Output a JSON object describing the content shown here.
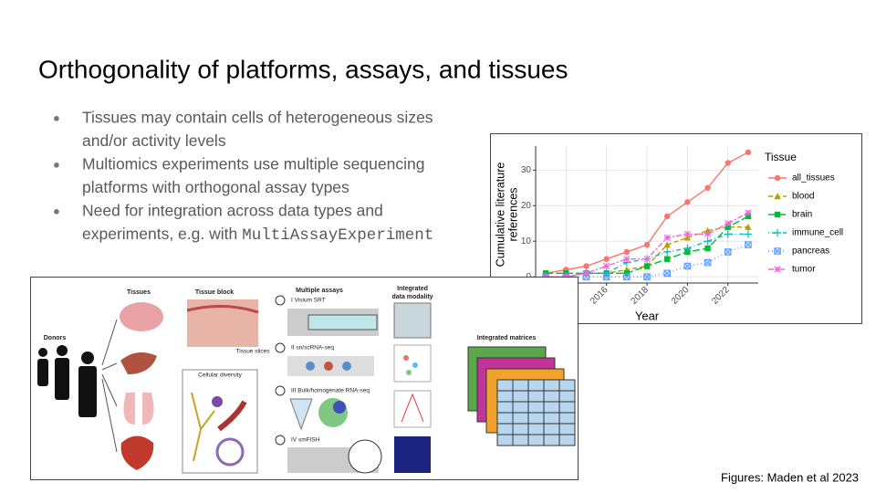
{
  "slide": {
    "title": "Orthogonality of platforms, assays, and tissues",
    "bullets": [
      {
        "lines": [
          "Tissues may contain cells of heterogeneous sizes",
          "and/or activity levels"
        ]
      },
      {
        "lines": [
          "Multiomics experiments use multiple sequencing",
          "platforms with orthogonal assay types"
        ]
      },
      {
        "lines": [
          "Need for integration across data types and",
          "experiments, e.g. with"
        ],
        "code": "MultiAssayExperiment"
      }
    ],
    "bullet_symbol": "●",
    "caption": "Figures: Maden et al 2023"
  },
  "chart_data": {
    "type": "line",
    "xlabel": "Year",
    "ylabel": [
      "Cumulative literature",
      "references"
    ],
    "legend_title": "Tissue",
    "x": [
      2013,
      2014,
      2015,
      2016,
      2017,
      2018,
      2019,
      2020,
      2021,
      2022,
      2023
    ],
    "xlim": [
      2012.5,
      2023.5
    ],
    "xticks": [
      2014,
      2016,
      2018,
      2020,
      2022
    ],
    "ylim": [
      -1.75,
      36.75
    ],
    "yticks": [
      0,
      10,
      20,
      30
    ],
    "grid": true,
    "legend": "right",
    "series": [
      {
        "name": "all_tissues",
        "color": "#F8766D",
        "marker": "circle",
        "dash": "solid",
        "values": [
          1,
          2,
          3,
          5,
          7,
          9,
          17,
          21,
          25,
          32,
          35
        ]
      },
      {
        "name": "blood",
        "color": "#B79F00",
        "marker": "triangle",
        "dash": "dashed",
        "values": [
          0,
          0,
          1,
          1,
          2,
          3,
          9,
          11,
          13,
          14,
          14
        ]
      },
      {
        "name": "brain",
        "color": "#00BA38",
        "marker": "square",
        "dash": "longdash",
        "values": [
          1,
          1,
          1,
          1,
          1,
          3,
          5,
          7,
          8,
          14,
          17
        ]
      },
      {
        "name": "immune_cell",
        "color": "#00BFC4",
        "marker": "plus",
        "dash": "dotdash",
        "values": [
          0,
          0,
          1,
          1,
          4,
          5,
          7,
          8,
          10,
          12,
          12
        ]
      },
      {
        "name": "pancreas",
        "color": "#619CFF",
        "marker": "squarex",
        "dash": "dotted",
        "values": [
          0,
          0,
          0,
          0,
          0,
          0,
          1,
          3,
          4,
          7,
          9
        ]
      },
      {
        "name": "tumor",
        "color": "#F564E3",
        "marker": "asterisk",
        "dash": "twodash",
        "values": [
          0,
          0,
          1,
          3,
          5,
          5,
          11,
          12,
          12,
          15,
          18
        ]
      }
    ]
  },
  "figure": {
    "labels": [
      "Donors",
      "Tissues",
      "Tissue block",
      "Cellular diversity",
      "Tissue slices",
      "Multiple assays",
      "I  Visium SRT",
      "II  sn/scRNA-seq",
      "III  Bulk/homogenate RNA-seq",
      "IV  smFISH",
      "Integrated",
      "data modality",
      "Integrated matrices"
    ]
  }
}
